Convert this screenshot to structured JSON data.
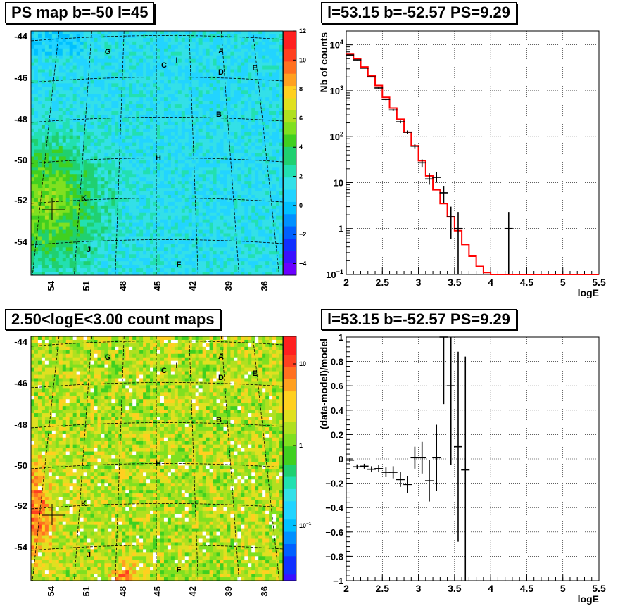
{
  "chart_data": [
    {
      "type": "heatmap",
      "title": "PS map b=-50 l=45",
      "colorbar_ticks": [
        "12",
        "10",
        "8",
        "6",
        "4",
        "2",
        "0",
        "−2",
        "−4"
      ],
      "colorbar_range": [
        -4.8,
        12
      ],
      "y_ticks": [
        "-44",
        "-46",
        "-48",
        "-50",
        "-52",
        "-54"
      ],
      "x_ticks": [
        "54",
        "51",
        "48",
        "45",
        "42",
        "39",
        "36"
      ],
      "source_labels": [
        "G",
        "C",
        "I",
        "A",
        "D",
        "E",
        "B",
        "H",
        "K",
        "J",
        "F"
      ],
      "colors": {
        "low": "#6a00ff",
        "mid": "#22d4ff",
        "high": "#ff2020"
      }
    },
    {
      "type": "line",
      "title": "l=53.15 b=-52.57 PS=9.29",
      "xlabel": "logE",
      "ylabel": "Nb of counts",
      "xlim": [
        2,
        5.5
      ],
      "ylim": [
        0.1,
        20000
      ],
      "yscale": "log",
      "x_ticks": [
        "2",
        "2.5",
        "3",
        "3.5",
        "4",
        "4.5",
        "5",
        "5.5"
      ],
      "y_ticks": [
        {
          "v": 0.1,
          "label": "10",
          "exp": "−1"
        },
        {
          "v": 1,
          "label": "1",
          "exp": ""
        },
        {
          "v": 10,
          "label": "10",
          "exp": ""
        },
        {
          "v": 100,
          "label": "10",
          "exp": "2"
        },
        {
          "v": 1000,
          "label": "10",
          "exp": "3"
        },
        {
          "v": 10000,
          "label": "10",
          "exp": "4"
        }
      ],
      "series": [
        {
          "values": [
            {
              "x": 2.05,
              "y": 6000,
              "ylo": 5900,
              "yhi": 6100
            },
            {
              "x": 2.15,
              "y": 4700,
              "ylo": 4600,
              "yhi": 4800
            },
            {
              "x": 2.25,
              "y": 3100,
              "ylo": 3030,
              "yhi": 3170
            },
            {
              "x": 2.35,
              "y": 2000,
              "ylo": 1950,
              "yhi": 2050
            },
            {
              "x": 2.45,
              "y": 1150,
              "ylo": 1110,
              "yhi": 1190
            },
            {
              "x": 2.55,
              "y": 650,
              "ylo": 625,
              "yhi": 675
            },
            {
              "x": 2.65,
              "y": 380,
              "ylo": 360,
              "yhi": 400
            },
            {
              "x": 2.75,
              "y": 210,
              "ylo": 196,
              "yhi": 224
            },
            {
              "x": 2.85,
              "y": 125,
              "ylo": 114,
              "yhi": 136
            },
            {
              "x": 2.95,
              "y": 62,
              "ylo": 54,
              "yhi": 70
            },
            {
              "x": 3.05,
              "y": 27,
              "ylo": 22,
              "yhi": 32
            },
            {
              "x": 3.15,
              "y": 12,
              "ylo": 9,
              "yhi": 16
            },
            {
              "x": 3.25,
              "y": 13,
              "ylo": 10,
              "yhi": 17
            },
            {
              "x": 3.35,
              "y": 6,
              "ylo": 3.6,
              "yhi": 8.5
            },
            {
              "x": 3.45,
              "y": 1.8,
              "ylo": 0.6,
              "yhi": 3
            },
            {
              "x": 3.55,
              "y": 1,
              "ylo": 0.1,
              "yhi": 2.3
            },
            {
              "x": 4.25,
              "y": 1,
              "ylo": 0.1,
              "yhi": 2.3
            }
          ]
        },
        {
          "color": "#ff0000",
          "values": [
            {
              "x0": 2.0,
              "x1": 2.1,
              "y": 6200
            },
            {
              "x0": 2.1,
              "x1": 2.2,
              "y": 5000
            },
            {
              "x0": 2.2,
              "x1": 2.3,
              "y": 3300
            },
            {
              "x0": 2.3,
              "x1": 2.4,
              "y": 2100
            },
            {
              "x0": 2.4,
              "x1": 2.5,
              "y": 1300
            },
            {
              "x0": 2.5,
              "x1": 2.6,
              "y": 720
            },
            {
              "x0": 2.6,
              "x1": 2.7,
              "y": 420
            },
            {
              "x0": 2.7,
              "x1": 2.8,
              "y": 240
            },
            {
              "x0": 2.8,
              "x1": 2.9,
              "y": 125
            },
            {
              "x0": 2.9,
              "x1": 3.0,
              "y": 63
            },
            {
              "x0": 3.0,
              "x1": 3.1,
              "y": 30
            },
            {
              "x0": 3.1,
              "x1": 3.2,
              "y": 14
            },
            {
              "x0": 3.2,
              "x1": 3.3,
              "y": 7
            },
            {
              "x0": 3.3,
              "x1": 3.4,
              "y": 3.5
            },
            {
              "x0": 3.4,
              "x1": 3.5,
              "y": 1.8
            },
            {
              "x0": 3.5,
              "x1": 3.6,
              "y": 0.9
            },
            {
              "x0": 3.6,
              "x1": 3.7,
              "y": 0.45
            },
            {
              "x0": 3.7,
              "x1": 3.8,
              "y": 0.25
            },
            {
              "x0": 3.8,
              "x1": 3.9,
              "y": 0.15
            },
            {
              "x0": 3.9,
              "x1": 4.0,
              "y": 0.11
            },
            {
              "x0": 4.0,
              "x1": 5.5,
              "y": 0.1
            }
          ]
        }
      ]
    },
    {
      "type": "heatmap",
      "title": "2.50<logE<3.00 count maps",
      "colorbar_ticks": [
        {
          "label": "10",
          "exp": ""
        },
        {
          "label": "1",
          "exp": ""
        },
        {
          "label": "10",
          "exp": "−1"
        }
      ],
      "y_ticks": [
        "-44",
        "-46",
        "-48",
        "-50",
        "-52",
        "-54"
      ],
      "x_ticks": [
        "54",
        "51",
        "48",
        "45",
        "42",
        "39",
        "36"
      ],
      "source_labels": [
        "G",
        "C",
        "I",
        "A",
        "D",
        "E",
        "B",
        "H",
        "K",
        "J",
        "F"
      ]
    },
    {
      "type": "scatter",
      "title": "l=53.15 b=-52.57 PS=9.29",
      "xlabel": "logE",
      "ylabel": "(data-model)/model",
      "xlim": [
        2,
        5.5
      ],
      "ylim": [
        -1,
        1
      ],
      "x_ticks": [
        "2",
        "2.5",
        "3",
        "3.5",
        "4",
        "4.5",
        "5",
        "5.5"
      ],
      "y_ticks": [
        "1",
        "0.8",
        "0.6",
        "0.4",
        "0.2",
        "0",
        "−0.2",
        "−0.4",
        "−0.6",
        "−0.8",
        "−1"
      ],
      "series": [
        {
          "values": [
            {
              "x": 2.05,
              "y": -0.01,
              "err": 0.015
            },
            {
              "x": 2.15,
              "y": -0.065,
              "err": 0.02
            },
            {
              "x": 2.25,
              "y": -0.06,
              "err": 0.02
            },
            {
              "x": 2.35,
              "y": -0.085,
              "err": 0.025
            },
            {
              "x": 2.45,
              "y": -0.08,
              "err": 0.03
            },
            {
              "x": 2.55,
              "y": -0.11,
              "err": 0.04
            },
            {
              "x": 2.65,
              "y": -0.11,
              "err": 0.05
            },
            {
              "x": 2.75,
              "y": -0.17,
              "err": 0.06
            },
            {
              "x": 2.85,
              "y": -0.21,
              "err": 0.07
            },
            {
              "x": 2.95,
              "y": 0.01,
              "err": 0.09
            },
            {
              "x": 3.05,
              "y": 0.01,
              "err": 0.13
            },
            {
              "x": 3.15,
              "y": -0.18,
              "err": 0.17
            },
            {
              "x": 3.25,
              "y": 0.01,
              "err": 0.27
            },
            {
              "x": 3.35,
              "y": 1.0,
              "err": 0.55
            },
            {
              "x": 3.45,
              "y": 0.6,
              "err": 0.65
            },
            {
              "x": 3.55,
              "y": 0.1,
              "err": 0.78
            },
            {
              "x": 3.65,
              "y": -0.09,
              "err": 0.93
            }
          ]
        }
      ]
    }
  ]
}
